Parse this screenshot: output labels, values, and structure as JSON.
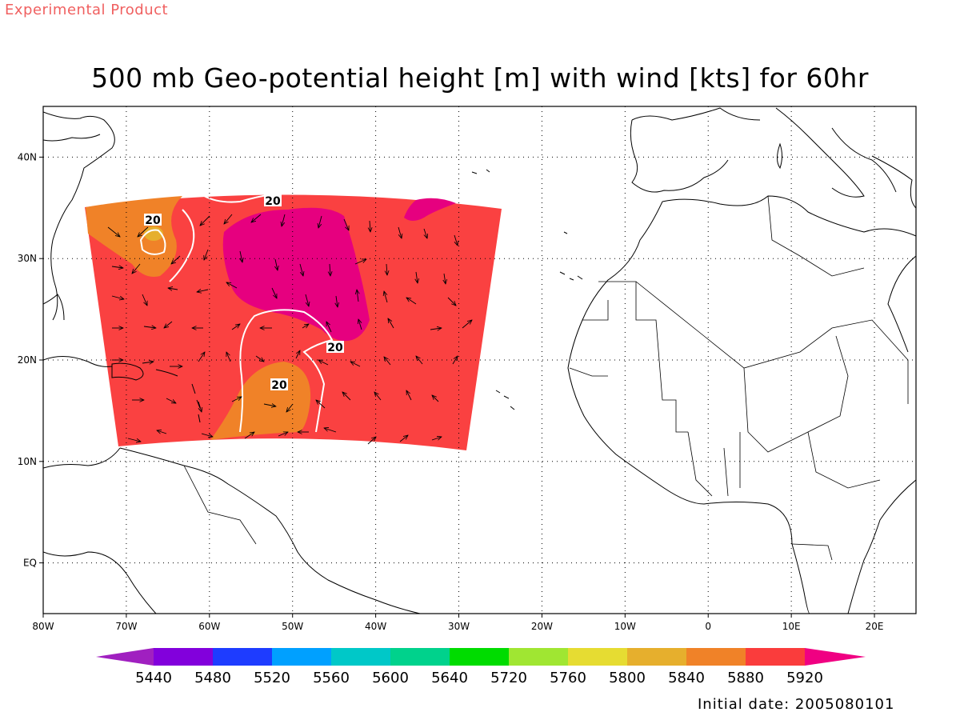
{
  "header": {
    "product_label": "Experimental Product"
  },
  "map": {
    "title": "500 mb Geo-potential height [m] with wind [kts] for 60hr",
    "initial_date_text": "Initial date: 2005080101",
    "extent": {
      "lon_min": -80,
      "lon_max": 25,
      "lat_min": -5,
      "lat_max": 45
    },
    "lon_ticks": [
      {
        "lon": -80,
        "label": "80W"
      },
      {
        "lon": -70,
        "label": "70W"
      },
      {
        "lon": -60,
        "label": "60W"
      },
      {
        "lon": -50,
        "label": "50W"
      },
      {
        "lon": -40,
        "label": "40W"
      },
      {
        "lon": -30,
        "label": "30W"
      },
      {
        "lon": -20,
        "label": "20W"
      },
      {
        "lon": -10,
        "label": "10W"
      },
      {
        "lon": 0,
        "label": "0"
      },
      {
        "lon": 10,
        "label": "10E"
      },
      {
        "lon": 20,
        "label": "20E"
      }
    ],
    "lat_ticks": [
      {
        "lat": 0,
        "label": "EQ"
      },
      {
        "lat": 10,
        "label": "10N"
      },
      {
        "lat": 20,
        "label": "20N"
      },
      {
        "lat": 30,
        "label": "30N"
      },
      {
        "lat": 40,
        "label": "40N"
      }
    ],
    "contour_value_label": "20",
    "colorbar": {
      "labels": [
        "5440",
        "5480",
        "5520",
        "5560",
        "5600",
        "5640",
        "5720",
        "5760",
        "5800",
        "5840",
        "5880",
        "5920"
      ],
      "colors": [
        "#a020c0",
        "#8200dc",
        "#1e3cff",
        "#00a0ff",
        "#00c8c8",
        "#00d28c",
        "#00dc00",
        "#a0e632",
        "#e6dc32",
        "#e6af2d",
        "#f08228",
        "#fa3c3c",
        "#f00082"
      ]
    },
    "colors": {
      "field_5880_5920": "#fa4141",
      "field_5840_5880": "#f08228",
      "field_above_5920": "#e6007f",
      "field_5800_5840": "#e6af2d",
      "contour": "#ffffff"
    }
  }
}
